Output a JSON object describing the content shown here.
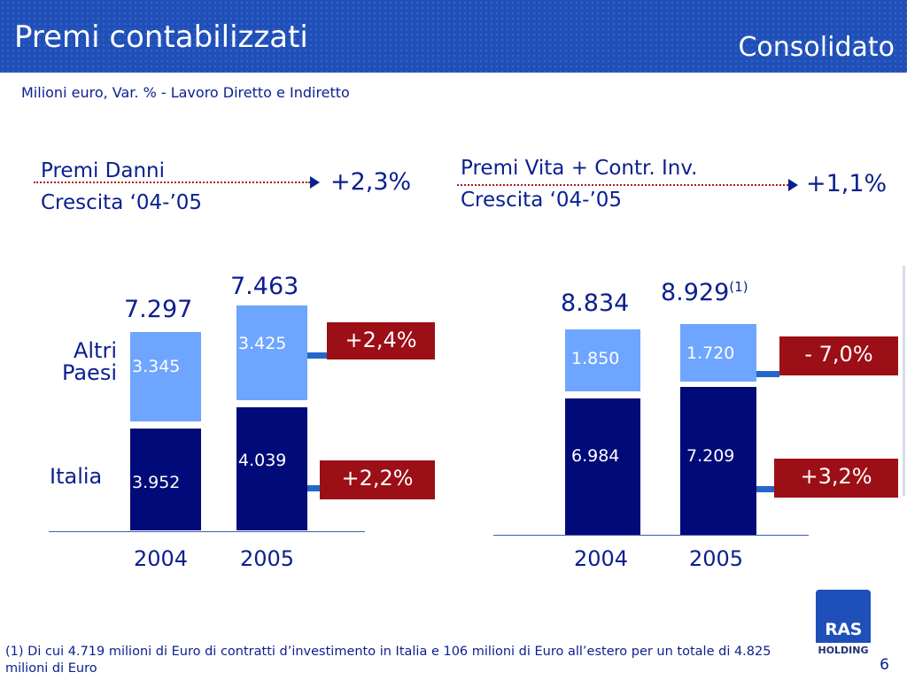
{
  "header": {
    "title": "Premi contabilizzati",
    "badge": "Consolidato",
    "subtitle": "Milioni euro, Var. % - Lavoro Diretto e Indiretto"
  },
  "danni": {
    "label_line1": "Premi Danni",
    "label_line2": "Crescita ‘04-’05",
    "growth": "+2,3%",
    "row_labels": {
      "other_line1": "Altri",
      "other_line2": "Paesi",
      "italy": "Italia"
    },
    "bars": [
      {
        "year": "2004",
        "total": "7.297",
        "other": "3.345",
        "italy": "3.952"
      },
      {
        "year": "2005",
        "total": "7.463",
        "other": "3.425",
        "italy": "4.039"
      }
    ],
    "change_other": "+2,4%",
    "change_italy": "+2,2%"
  },
  "vita": {
    "label_line1": "Premi Vita + Contr. Inv.",
    "label_line2": "Crescita ‘04-’05",
    "growth": "+1,1%",
    "bars": [
      {
        "year": "2004",
        "total": "8.834",
        "other": "1.850",
        "italy": "6.984"
      },
      {
        "year": "2005",
        "total": "8.929",
        "total_note": "(1)",
        "other": "1.720",
        "italy": "7.209"
      }
    ],
    "change_other": "- 7,0%",
    "change_italy": "+3,2%"
  },
  "footnote": " (1) Di cui 4.719 milioni di Euro di contratti d’investimento in Italia e 106 milioni di Euro all’estero per un totale di 4.825 milioni di Euro",
  "page_number": "6",
  "logo": {
    "name": "RAS",
    "sub": "HOLDING"
  },
  "colors": {
    "header_blue": "#1f4fb8",
    "dark_bar": "#000a78",
    "light_bar": "#6ea5ff",
    "badge_red": "#9c0f16",
    "text_navy": "#0a1f8f"
  }
}
